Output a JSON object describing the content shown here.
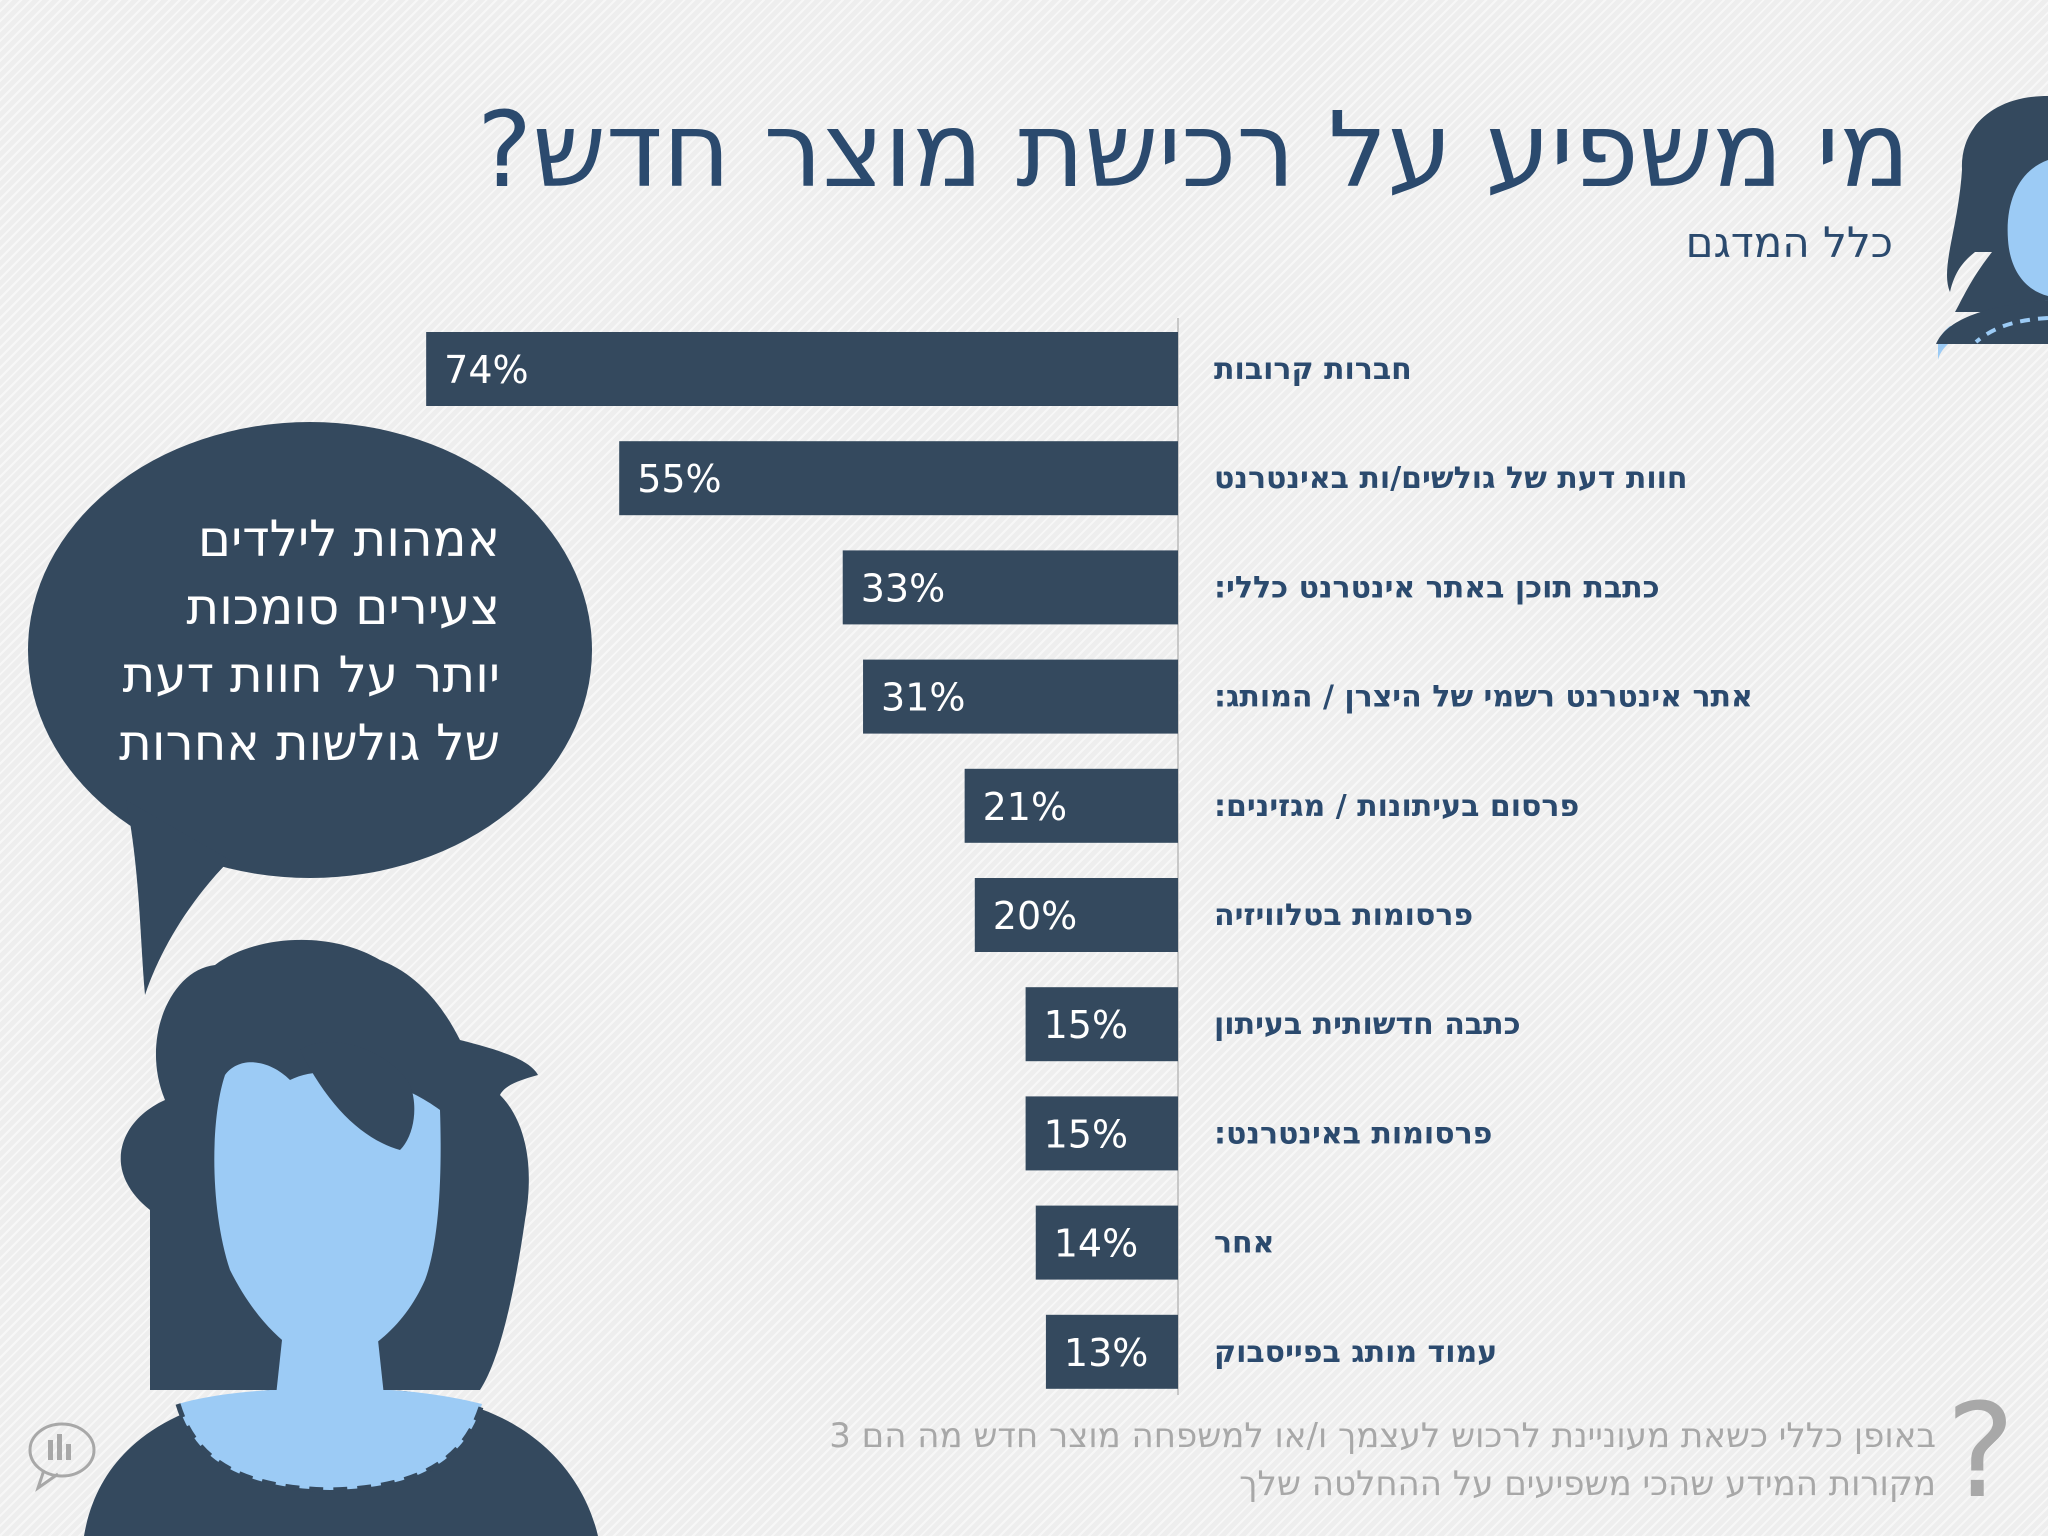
{
  "title": "מי משפיע על רכישת מוצר חדש?",
  "subtitle": "כלל המדגם",
  "speech_bubble": {
    "lines": [
      "אמהות לילדים",
      "צעירים סומכות",
      "יותר על חוות דעת",
      "של גולשות אחרות"
    ]
  },
  "footnote": {
    "line1": "באופן כללי כשאת מעוניינת לרכוש לעצמך ו/או למשפחה מוצר חדש מה הם 3",
    "line2": "מקורות המידע שהכי משפיעים על ההחלטה שלך"
  },
  "question_mark": "?",
  "colors": {
    "bar": "#34495e",
    "title": "#2b4a6e",
    "figure_dark": "#34495e",
    "figure_skin": "#9ccbf5",
    "footnote": "#a8a8a8"
  },
  "icons": [
    "woman-figure-icon",
    "speech-bubble-icon",
    "logo-icon",
    "question-mark-icon"
  ],
  "chart_data": {
    "type": "bar",
    "orientation": "horizontal",
    "categories": [
      "חברות קרובות",
      "חוות דעת של גולשים/ות באינטרנט",
      "כתבת תוכן באתר אינטרנט כללי:",
      "אתר אינטרנט רשמי של היצרן / המותג:",
      "פרסום בעיתונות / מגזינים:",
      "פרסומות בטלוויזיה",
      "כתבה חדשותית בעיתון",
      "פרסומות באינטרנט:",
      "אחר",
      "עמוד מותג בפייסבוק"
    ],
    "values": [
      74,
      55,
      33,
      31,
      21,
      20,
      15,
      15,
      14,
      13
    ],
    "value_labels": [
      "74%",
      "55%",
      "33%",
      "31%",
      "21%",
      "20%",
      "15%",
      "15%",
      "14%",
      "13%"
    ],
    "unit": "%",
    "bar_direction": "right-to-left"
  }
}
